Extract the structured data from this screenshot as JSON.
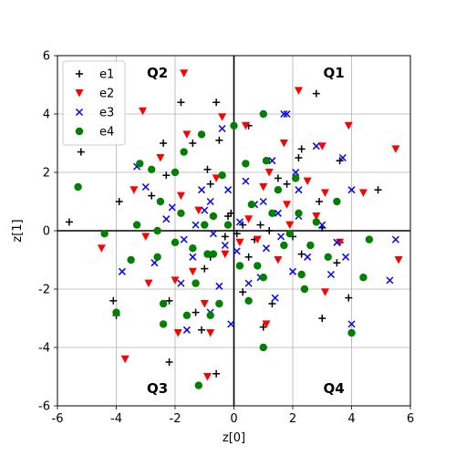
{
  "chart_data": {
    "type": "scatter",
    "title": "",
    "xlabel": "z[0]",
    "ylabel": "z[1]",
    "xlim": [
      -6,
      6
    ],
    "ylim": [
      -6,
      6
    ],
    "xticks": [
      -6,
      -4,
      -2,
      0,
      2,
      4,
      6
    ],
    "yticks": [
      -6,
      -4,
      -2,
      0,
      2,
      4,
      6
    ],
    "grid": true,
    "axis_lines_at_zero": true,
    "legend_position": "top-left",
    "quadrant_labels": [
      {
        "text": "Q1",
        "x": 3.4,
        "y": 5.4
      },
      {
        "text": "Q2",
        "x": -2.6,
        "y": 5.4
      },
      {
        "text": "Q3",
        "x": -2.6,
        "y": -5.4
      },
      {
        "text": "Q4",
        "x": 3.4,
        "y": -5.4
      }
    ],
    "series": [
      {
        "name": "e1",
        "marker": "plus",
        "color": "#000000",
        "points": [
          [
            -5.2,
            2.7
          ],
          [
            -5.6,
            0.3
          ],
          [
            -3.9,
            1.0
          ],
          [
            -4.1,
            -2.4
          ],
          [
            -4.0,
            -2.9
          ],
          [
            -2.8,
            1.2
          ],
          [
            -2.4,
            3.0
          ],
          [
            -2.3,
            1.9
          ],
          [
            -2.2,
            -4.5
          ],
          [
            -2.2,
            -2.4
          ],
          [
            -1.8,
            4.4
          ],
          [
            -1.4,
            3.0
          ],
          [
            -1.3,
            -2.8
          ],
          [
            -1.1,
            -3.4
          ],
          [
            -1.0,
            -1.3
          ],
          [
            -0.9,
            2.1
          ],
          [
            -0.8,
            1.6
          ],
          [
            -0.8,
            -0.9
          ],
          [
            -0.6,
            4.4
          ],
          [
            -0.6,
            -4.9
          ],
          [
            -0.5,
            3.1
          ],
          [
            -0.3,
            -0.2
          ],
          [
            -0.2,
            0.5
          ],
          [
            -0.1,
            0.6
          ],
          [
            0.1,
            -0.1
          ],
          [
            0.3,
            0.2
          ],
          [
            0.3,
            -2.1
          ],
          [
            0.5,
            3.6
          ],
          [
            0.5,
            -0.9
          ],
          [
            0.7,
            -0.3
          ],
          [
            0.9,
            0.2
          ],
          [
            1.0,
            -3.3
          ],
          [
            1.2,
            0.0
          ],
          [
            1.3,
            -2.5
          ],
          [
            1.5,
            1.8
          ],
          [
            1.8,
            1.6
          ],
          [
            2.0,
            -0.2
          ],
          [
            2.2,
            2.5
          ],
          [
            2.3,
            2.8
          ],
          [
            2.3,
            -0.8
          ],
          [
            2.8,
            4.7
          ],
          [
            2.9,
            1.0
          ],
          [
            3.0,
            -3.0
          ],
          [
            3.0,
            0.1
          ],
          [
            3.5,
            -1.1
          ],
          [
            3.6,
            2.4
          ],
          [
            3.6,
            -0.4
          ],
          [
            3.9,
            -2.3
          ],
          [
            4.9,
            1.4
          ]
        ]
      },
      {
        "name": "e2",
        "marker": "triangle-down",
        "color": "#ff0000",
        "points": [
          [
            -4.5,
            -0.6
          ],
          [
            -3.7,
            -4.4
          ],
          [
            -3.4,
            1.4
          ],
          [
            -3.1,
            4.1
          ],
          [
            -3.0,
            -0.2
          ],
          [
            -2.9,
            -1.8
          ],
          [
            -2.5,
            2.5
          ],
          [
            -1.9,
            -3.5
          ],
          [
            -1.8,
            1.2
          ],
          [
            -1.7,
            5.4
          ],
          [
            -1.6,
            3.3
          ],
          [
            -1.4,
            -1.4
          ],
          [
            -1.2,
            0.7
          ],
          [
            -1.0,
            -2.5
          ],
          [
            -0.8,
            -3.5
          ],
          [
            -0.6,
            1.8
          ],
          [
            -0.4,
            3.9
          ],
          [
            -0.3,
            -0.8
          ],
          [
            0.2,
            -0.4
          ],
          [
            0.4,
            3.6
          ],
          [
            0.5,
            0.4
          ],
          [
            0.8,
            -0.3
          ],
          [
            1.0,
            1.5
          ],
          [
            1.1,
            -3.2
          ],
          [
            1.2,
            2.0
          ],
          [
            1.5,
            -1.0
          ],
          [
            1.7,
            3.0
          ],
          [
            1.8,
            0.9
          ],
          [
            1.9,
            0.2
          ],
          [
            2.2,
            4.8
          ],
          [
            2.5,
            1.7
          ],
          [
            2.8,
            0.5
          ],
          [
            3.0,
            2.9
          ],
          [
            3.1,
            1.3
          ],
          [
            3.1,
            -2.1
          ],
          [
            3.6,
            -0.4
          ],
          [
            3.9,
            3.6
          ],
          [
            4.4,
            1.3
          ],
          [
            5.5,
            2.8
          ],
          [
            5.6,
            -1.0
          ],
          [
            -0.9,
            -5.0
          ],
          [
            -2.0,
            -1.7
          ]
        ]
      },
      {
        "name": "e3",
        "marker": "x",
        "color": "#0000ff",
        "points": [
          [
            -3.8,
            -1.4
          ],
          [
            -3.3,
            2.2
          ],
          [
            -3.0,
            1.5
          ],
          [
            -2.7,
            -1.1
          ],
          [
            -2.3,
            0.4
          ],
          [
            -2.1,
            0.8
          ],
          [
            -1.8,
            -1.8
          ],
          [
            -1.7,
            -0.3
          ],
          [
            -1.6,
            -3.4
          ],
          [
            -1.4,
            -0.9
          ],
          [
            -1.3,
            0.2
          ],
          [
            -1.1,
            1.4
          ],
          [
            -1.0,
            0.7
          ],
          [
            -0.8,
            -2.8
          ],
          [
            -0.7,
            -0.1
          ],
          [
            -0.5,
            -1.9
          ],
          [
            -0.4,
            3.5
          ],
          [
            -0.3,
            -0.5
          ],
          [
            -0.2,
            1.4
          ],
          [
            -0.1,
            -3.2
          ],
          [
            0.1,
            -0.7
          ],
          [
            0.2,
            0.3
          ],
          [
            0.4,
            1.7
          ],
          [
            0.5,
            -1.8
          ],
          [
            0.7,
            0.9
          ],
          [
            0.9,
            -1.6
          ],
          [
            1.0,
            1.0
          ],
          [
            1.1,
            -0.6
          ],
          [
            1.3,
            2.4
          ],
          [
            1.4,
            -2.3
          ],
          [
            1.6,
            -0.2
          ],
          [
            1.7,
            4.0
          ],
          [
            1.8,
            4.0
          ],
          [
            2.0,
            -1.4
          ],
          [
            2.1,
            2.0
          ],
          [
            2.2,
            0.5
          ],
          [
            2.5,
            -0.9
          ],
          [
            2.8,
            2.9
          ],
          [
            3.0,
            0.2
          ],
          [
            3.3,
            -1.5
          ],
          [
            3.5,
            -0.4
          ],
          [
            3.7,
            2.5
          ],
          [
            3.8,
            -0.9
          ],
          [
            4.0,
            1.4
          ],
          [
            4.0,
            -3.2
          ],
          [
            5.3,
            -1.7
          ],
          [
            5.5,
            -0.3
          ],
          [
            -0.8,
            1.0
          ],
          [
            1.5,
            0.6
          ],
          [
            2.2,
            1.4
          ]
        ]
      },
      {
        "name": "e4",
        "marker": "circle",
        "color": "#008000",
        "points": [
          [
            -5.3,
            1.5
          ],
          [
            -4.4,
            -0.1
          ],
          [
            -4.0,
            -2.8
          ],
          [
            -3.5,
            -1.0
          ],
          [
            -3.3,
            0.2
          ],
          [
            -3.2,
            2.3
          ],
          [
            -2.8,
            2.1
          ],
          [
            -2.6,
            0.0
          ],
          [
            -2.6,
            -0.9
          ],
          [
            -2.5,
            1.0
          ],
          [
            -2.4,
            -2.5
          ],
          [
            -2.4,
            -3.2
          ],
          [
            -2.0,
            2.0
          ],
          [
            -2.0,
            -0.4
          ],
          [
            -1.8,
            0.6
          ],
          [
            -1.7,
            2.7
          ],
          [
            -1.6,
            -2.9
          ],
          [
            -1.4,
            -0.6
          ],
          [
            -1.3,
            -1.8
          ],
          [
            -1.1,
            3.3
          ],
          [
            -1.0,
            0.2
          ],
          [
            -0.9,
            -0.8
          ],
          [
            -0.8,
            -2.9
          ],
          [
            -0.7,
            0.5
          ],
          [
            -0.5,
            -2.5
          ],
          [
            -0.4,
            1.9
          ],
          [
            -0.2,
            0.2
          ],
          [
            0.0,
            3.6
          ],
          [
            0.2,
            -1.2
          ],
          [
            0.4,
            2.3
          ],
          [
            0.5,
            -2.4
          ],
          [
            0.6,
            0.9
          ],
          [
            0.8,
            -1.2
          ],
          [
            1.0,
            -1.6
          ],
          [
            1.0,
            4.0
          ],
          [
            1.0,
            -4.0
          ],
          [
            1.1,
            2.4
          ],
          [
            1.3,
            0.6
          ],
          [
            1.5,
            1.4
          ],
          [
            1.7,
            -0.5
          ],
          [
            1.9,
            -0.1
          ],
          [
            2.1,
            1.8
          ],
          [
            2.2,
            0.6
          ],
          [
            2.3,
            -1.5
          ],
          [
            2.4,
            -2.0
          ],
          [
            2.6,
            -0.5
          ],
          [
            2.8,
            0.3
          ],
          [
            3.2,
            -0.9
          ],
          [
            3.5,
            1.0
          ],
          [
            4.0,
            -3.5
          ],
          [
            4.4,
            -1.6
          ],
          [
            4.6,
            -0.3
          ],
          [
            -1.2,
            -5.3
          ],
          [
            -0.7,
            -0.8
          ]
        ]
      }
    ]
  }
}
